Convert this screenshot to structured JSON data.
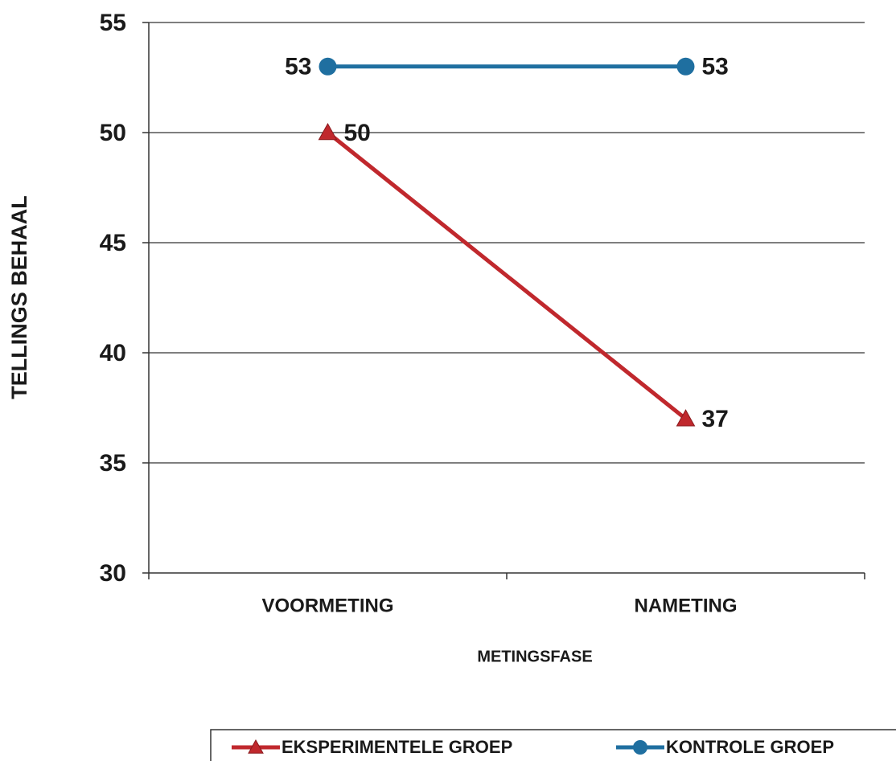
{
  "chart_data": {
    "type": "line",
    "x_label": "METINGSFASE",
    "y_label": "TELLINGS BEHAAL",
    "categories": [
      "VOORMETING",
      "NAMETING"
    ],
    "series": [
      {
        "name": "EKSPERIMENTELE GROEP",
        "color": "#c0282d",
        "marker": "triangle",
        "values": [
          50,
          37
        ]
      },
      {
        "name": "KONTROLE GROEP",
        "color": "#1f6fa0",
        "marker": "circle",
        "values": [
          53,
          53
        ]
      }
    ],
    "ylim": [
      30,
      55
    ],
    "yticks": [
      30,
      35,
      40,
      45,
      50,
      55
    ],
    "grid": true,
    "legend": "bottom"
  }
}
